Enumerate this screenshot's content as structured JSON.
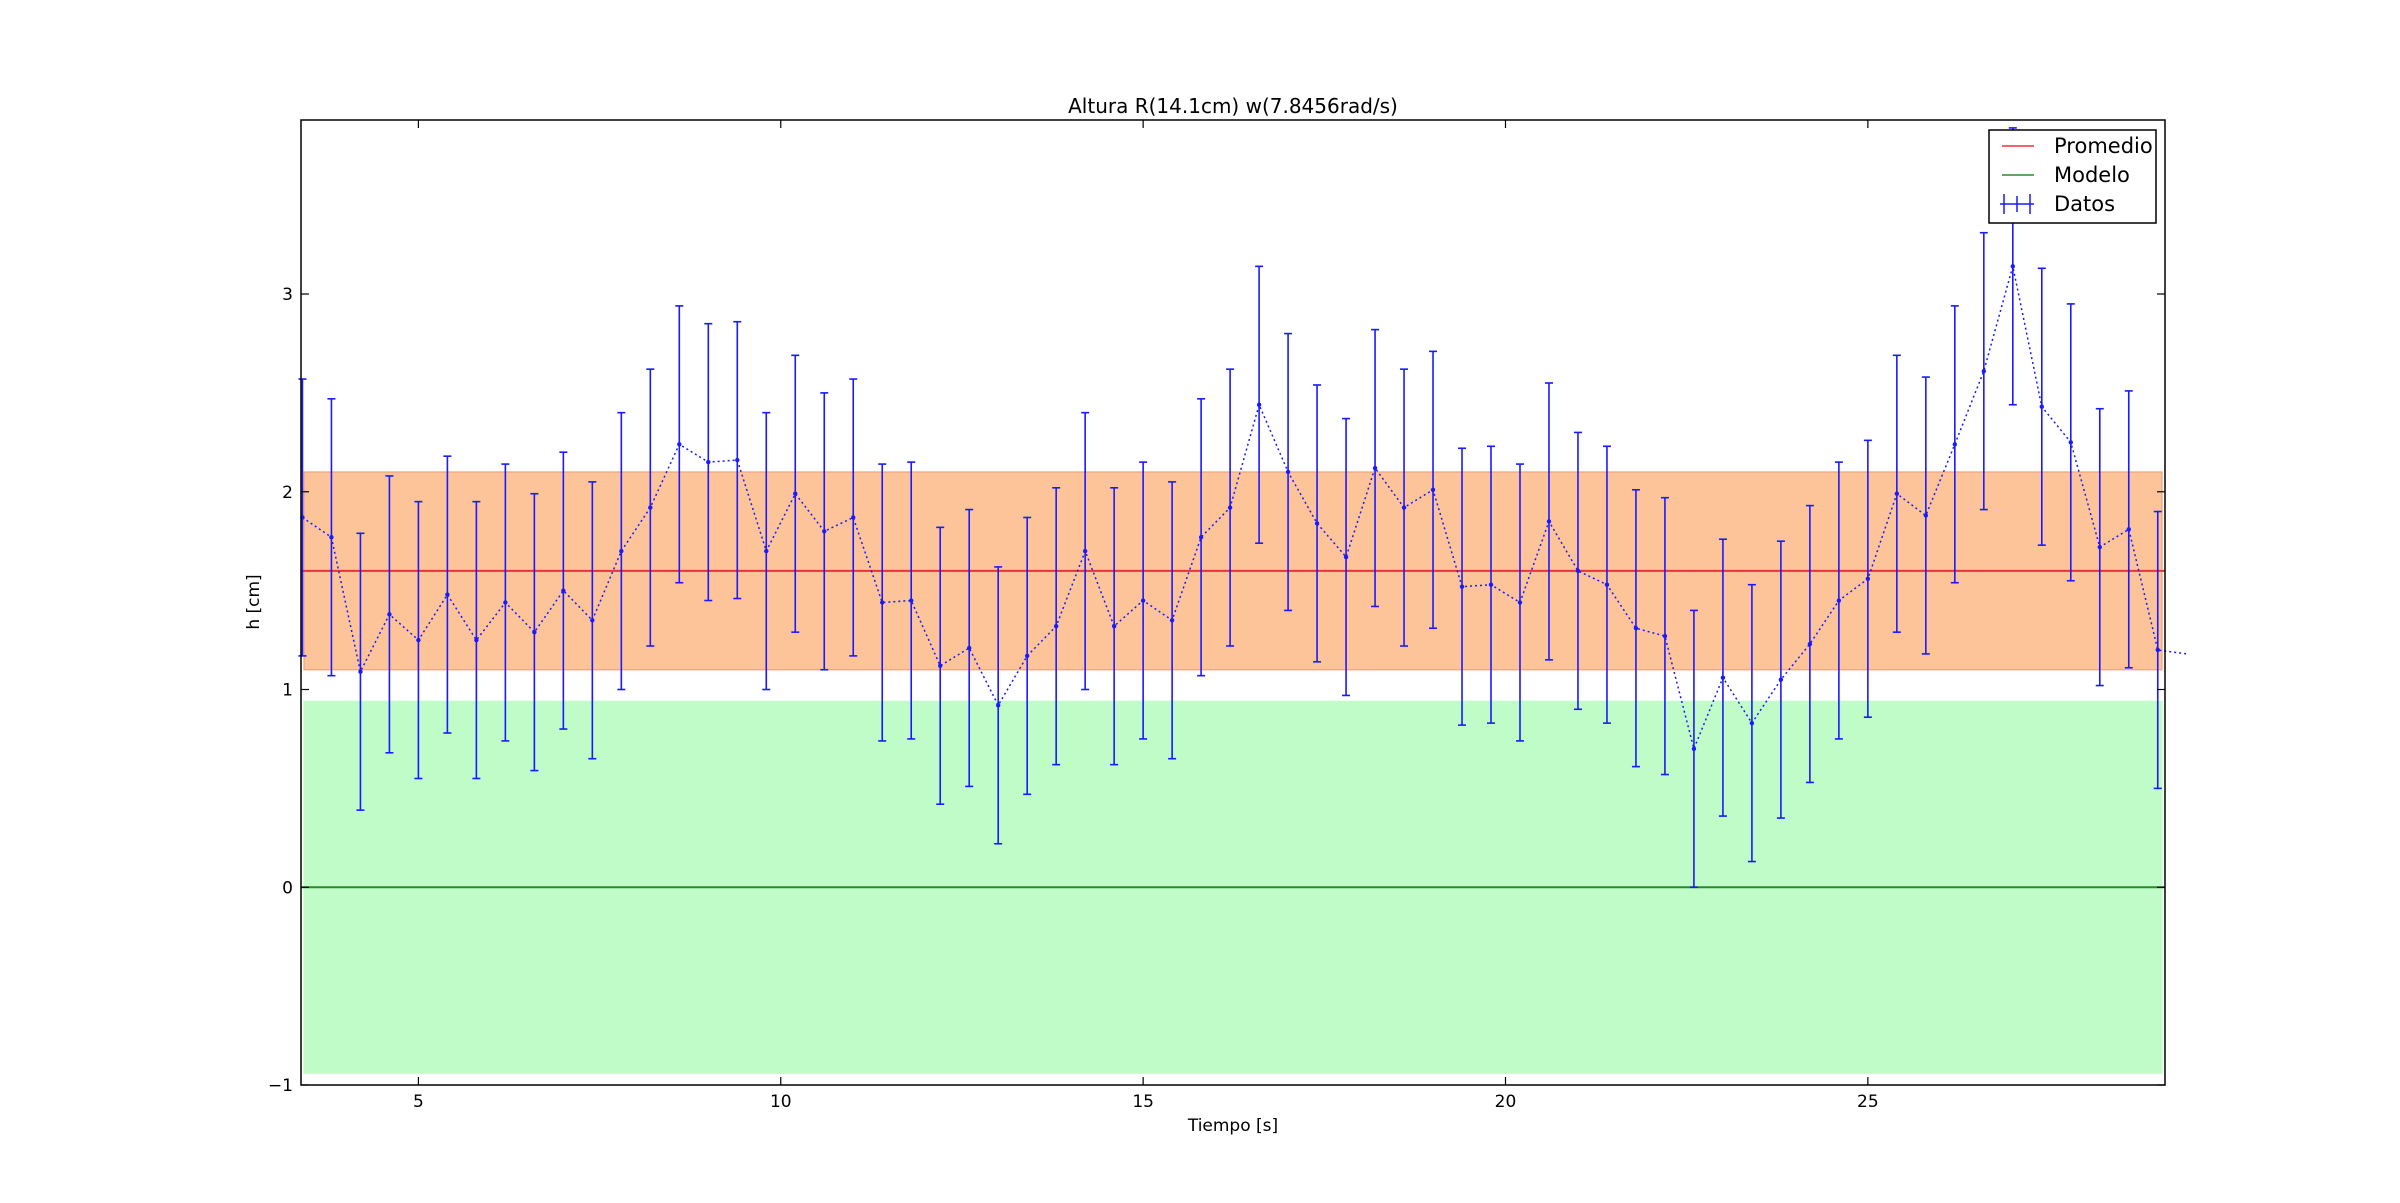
{
  "chart_data": {
    "type": "line",
    "title": "Altura R(14.1cm) w(7.8456rad/s)",
    "xlabel": "Tiempo [s]",
    "ylabel": "h [cm]",
    "xlim": [
      3.38,
      29.1
    ],
    "ylim": [
      -1,
      3.88
    ],
    "xticks": [
      5,
      10,
      15,
      20,
      25
    ],
    "yticks": [
      -1,
      0,
      1,
      2,
      3
    ],
    "grid": false,
    "legend_position": "top-right",
    "bands": [
      {
        "y0": 1.1,
        "y1": 2.1,
        "color": "#fdc49a",
        "edge": "#f4a07a"
      },
      {
        "y0": -0.94,
        "y1": 0.94,
        "color": "#c0fcc8",
        "edge": "#c0fcc8"
      }
    ],
    "series": [
      {
        "name": "Promedio",
        "kind": "hline",
        "y": 1.6,
        "color": "#e3363a"
      },
      {
        "name": "Modelo",
        "kind": "hline",
        "y": 0,
        "color": "#2a8a2a"
      },
      {
        "name": "Datos",
        "kind": "errorbar",
        "color": "#1a1aff",
        "error": 0.7,
        "x": [
          3.4,
          3.8,
          4.2,
          4.6,
          5.0,
          5.4,
          5.8,
          6.2,
          6.6,
          7.0,
          7.4,
          7.8,
          8.2,
          8.6,
          9.0,
          9.4,
          9.8,
          10.2,
          10.6,
          11.0,
          11.4,
          11.8,
          12.2,
          12.6,
          13.0,
          13.4,
          13.8,
          14.2,
          14.6,
          15.0,
          15.4,
          15.8,
          16.2,
          16.6,
          17.0,
          17.4,
          17.8,
          18.2,
          18.6,
          19.0,
          19.4,
          19.8,
          20.2,
          20.6,
          21.0,
          21.4,
          21.8,
          22.2,
          22.6,
          23.0,
          23.4,
          23.8,
          24.2,
          24.6,
          25.0,
          25.4,
          25.8,
          26.2,
          26.6,
          27.0,
          27.4,
          27.8,
          28.2,
          28.6,
          29.0,
          29.4
        ],
        "values": [
          1.87,
          1.77,
          1.09,
          1.38,
          1.25,
          1.48,
          1.25,
          1.44,
          1.29,
          1.5,
          1.35,
          1.7,
          1.92,
          2.24,
          2.15,
          2.16,
          1.7,
          1.99,
          1.8,
          1.87,
          1.44,
          1.45,
          1.12,
          1.21,
          0.92,
          1.17,
          1.32,
          1.7,
          1.32,
          1.45,
          1.35,
          1.77,
          1.92,
          2.44,
          2.1,
          1.84,
          1.67,
          2.12,
          1.92,
          2.01,
          1.52,
          1.53,
          1.44,
          1.85,
          1.6,
          1.53,
          1.31,
          1.27,
          0.7,
          1.06,
          0.83,
          1.05,
          1.23,
          1.45,
          1.56,
          1.99,
          1.88,
          2.24,
          2.61,
          3.14,
          2.43,
          2.25,
          1.72,
          1.81,
          1.2,
          1.18
        ]
      }
    ]
  }
}
